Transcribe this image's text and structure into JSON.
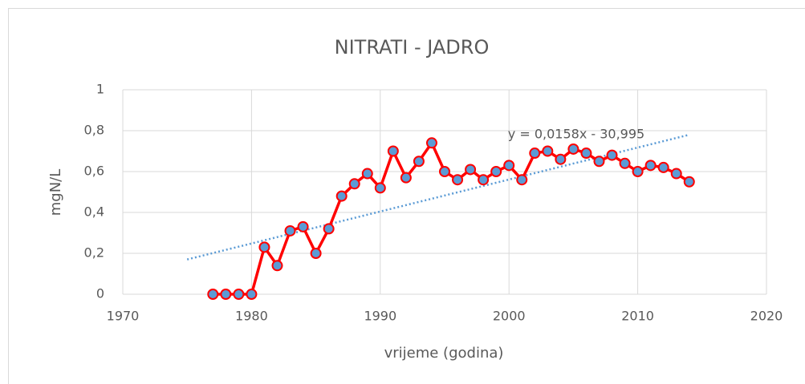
{
  "chart_data": {
    "type": "line",
    "title": "NITRATI - JADRO",
    "x_label": "vrijeme (godina)",
    "y_label": "mgN/L",
    "x": [
      1977,
      1978,
      1979,
      1980,
      1981,
      1982,
      1983,
      1984,
      1985,
      1986,
      1987,
      1988,
      1989,
      1990,
      1991,
      1992,
      1993,
      1994,
      1995,
      1996,
      1997,
      1998,
      1999,
      2000,
      2001,
      2002,
      2003,
      2004,
      2005,
      2006,
      2007,
      2008,
      2009,
      2010,
      2011,
      2012,
      2013,
      2014
    ],
    "series": [
      {
        "color": "#ff0000",
        "marker_color": "#5b9bd5",
        "values": [
          0,
          0,
          0,
          0,
          0.23,
          0.14,
          0.31,
          0.33,
          0.2,
          0.32,
          0.48,
          0.54,
          0.59,
          0.52,
          0.7,
          0.57,
          0.65,
          0.74,
          0.6,
          0.56,
          0.61,
          0.56,
          0.6,
          0.63,
          0.56,
          0.69,
          0.7,
          0.66,
          0.71,
          0.69,
          0.65,
          0.68,
          0.64,
          0.6,
          0.63,
          0.62,
          0.59,
          0.55
        ]
      }
    ],
    "trendline": {
      "x": [
        1975,
        2014
      ],
      "values": [
        0.17,
        0.78
      ],
      "color": "#5b9bd5",
      "label": "y = 0,0158x - 30,995"
    },
    "xlim": [
      1970,
      2020
    ],
    "xticks": [
      1970,
      1980,
      1990,
      2000,
      2010,
      2020
    ],
    "ylim": [
      0,
      1
    ],
    "yticks": [
      0,
      {
        "value": 0.2,
        "label": "0,2"
      },
      {
        "value": 0.4,
        "label": "0,4"
      },
      {
        "value": 0.6,
        "label": "0,6"
      },
      {
        "value": 0.8,
        "label": "0,8"
      },
      1
    ],
    "grid": true
  }
}
